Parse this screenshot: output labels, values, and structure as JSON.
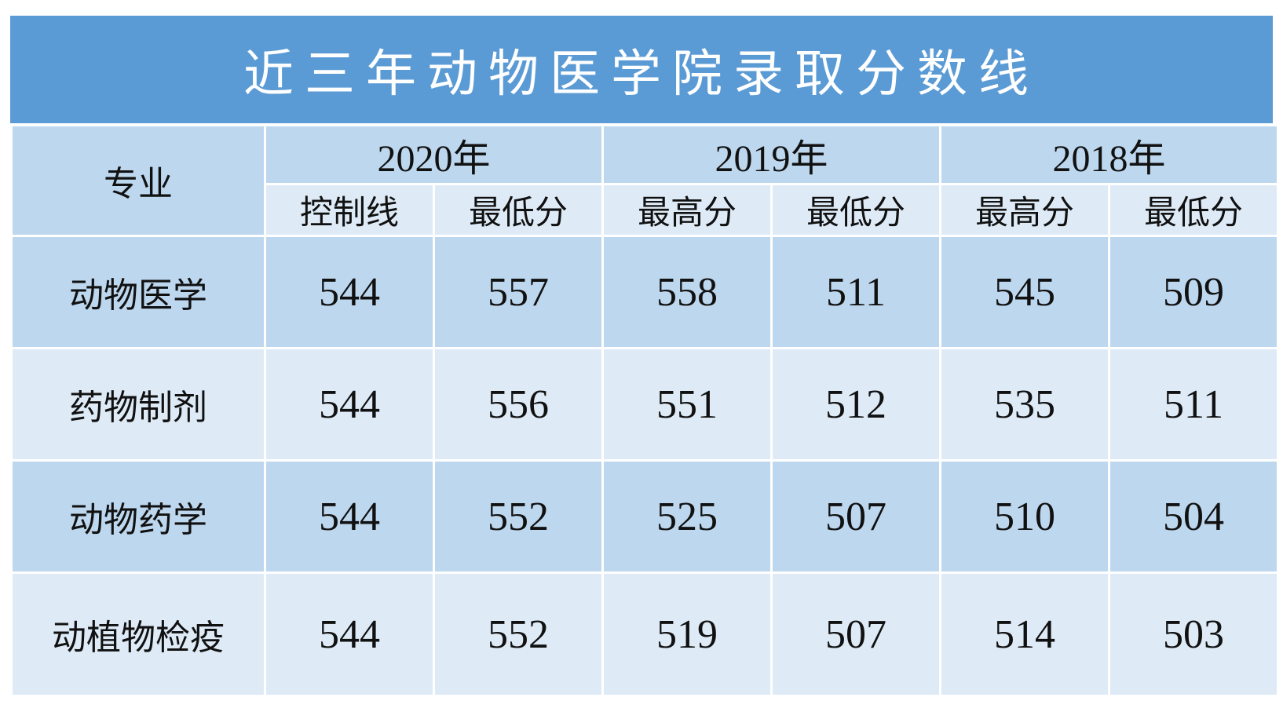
{
  "title": "近三年动物医学院录取分数线",
  "colors": {
    "banner_bg": "#5B9BD5",
    "band_medium": "#BDD7EE",
    "band_light": "#DEEBF7",
    "title_text": "#FFFFFF",
    "cell_text": "#111111"
  },
  "table": {
    "corner_header": "专业",
    "year_headers": [
      "2020年",
      "2019年",
      "2018年"
    ],
    "sub_headers": [
      "控制线",
      "最低分",
      "最高分",
      "最低分",
      "最高分",
      "最低分"
    ],
    "rows": [
      {
        "major": "动物医学",
        "values": [
          "544",
          "557",
          "558",
          "511",
          "545",
          "509"
        ]
      },
      {
        "major": "药物制剂",
        "values": [
          "544",
          "556",
          "551",
          "512",
          "535",
          "511"
        ]
      },
      {
        "major": "动物药学",
        "values": [
          "544",
          "552",
          "525",
          "507",
          "510",
          "504"
        ]
      },
      {
        "major": "动植物检疫",
        "values": [
          "544",
          "552",
          "519",
          "507",
          "514",
          "503"
        ]
      }
    ]
  },
  "chart_data": {
    "type": "table",
    "title": "近三年动物医学院录取分数线",
    "columns": [
      "专业",
      "2020年 控制线",
      "2020年 最低分",
      "2019年 最高分",
      "2019年 最低分",
      "2018年 最高分",
      "2018年 最低分"
    ],
    "rows": [
      [
        "动物医学",
        544,
        557,
        558,
        511,
        545,
        509
      ],
      [
        "药物制剂",
        544,
        556,
        551,
        512,
        535,
        511
      ],
      [
        "动物药学",
        544,
        552,
        525,
        507,
        510,
        504
      ],
      [
        "动植物检疫",
        544,
        552,
        519,
        507,
        514,
        503
      ]
    ]
  }
}
